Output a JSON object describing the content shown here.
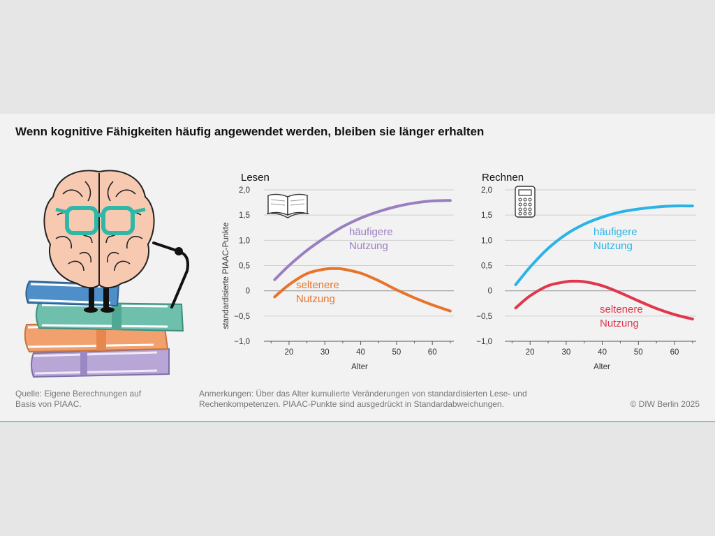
{
  "title": "Wenn kognitive Fähigkeiten häufig angewendet werden, bleiben sie länger erhalten",
  "illustration": {
    "name": "brain-with-glasses-on-books"
  },
  "colors": {
    "lesen_haeufig": "#9a7fc0",
    "lesen_selten": "#e8732a",
    "rechnen_haeufig": "#2ab3e6",
    "rechnen_selten": "#e0374b",
    "grid": "#cfcfcf",
    "zero_line": "#9a9a9a"
  },
  "chart_data": [
    {
      "type": "line",
      "title": "Lesen",
      "icon": "book-icon",
      "xlabel": "Alter",
      "ylabel": "standardisierte PIAAC-Punkte",
      "xlim": [
        13,
        66
      ],
      "ylim": [
        -1.0,
        2.0
      ],
      "xticks": [
        20,
        30,
        40,
        50,
        60
      ],
      "yticks": [
        2.0,
        1.5,
        1.0,
        0.5,
        0,
        -0.5,
        -1.0
      ],
      "ytick_labels": [
        "2,0",
        "1,5",
        "1,0",
        "0,5",
        "0",
        "−0,5",
        "−1,0"
      ],
      "grid": true,
      "series": [
        {
          "label": [
            "häufigere",
            "Nutzung"
          ],
          "color": "#9a7fc0",
          "x": [
            16,
            20,
            25,
            30,
            35,
            40,
            45,
            50,
            55,
            60,
            65
          ],
          "y": [
            0.22,
            0.5,
            0.8,
            1.05,
            1.27,
            1.44,
            1.57,
            1.67,
            1.74,
            1.78,
            1.79
          ]
        },
        {
          "label": [
            "seltenere",
            "Nutzung"
          ],
          "color": "#e8732a",
          "x": [
            16,
            20,
            25,
            30,
            33,
            35,
            40,
            45,
            50,
            55,
            60,
            65
          ],
          "y": [
            -0.12,
            0.12,
            0.34,
            0.43,
            0.44,
            0.43,
            0.35,
            0.2,
            0.02,
            -0.14,
            -0.28,
            -0.4
          ]
        }
      ]
    },
    {
      "type": "line",
      "title": "Rechnen",
      "icon": "calculator-icon",
      "xlabel": "Alter",
      "ylabel": "",
      "xlim": [
        13,
        66
      ],
      "ylim": [
        -1.0,
        2.0
      ],
      "xticks": [
        20,
        30,
        40,
        50,
        60
      ],
      "yticks": [
        2.0,
        1.5,
        1.0,
        0.5,
        0,
        -0.5,
        -1.0
      ],
      "ytick_labels": [
        "2,0",
        "1,5",
        "1,0",
        "0,5",
        "0",
        "−0,5",
        "−1,0"
      ],
      "grid": true,
      "series": [
        {
          "label": [
            "häufigere",
            "Nutzung"
          ],
          "color": "#2ab3e6",
          "x": [
            16,
            20,
            25,
            30,
            35,
            40,
            45,
            50,
            55,
            60,
            65
          ],
          "y": [
            0.12,
            0.47,
            0.84,
            1.12,
            1.32,
            1.46,
            1.56,
            1.62,
            1.66,
            1.68,
            1.68
          ]
        },
        {
          "label": [
            "seltenere",
            "Nutzung"
          ],
          "color": "#e0374b",
          "x": [
            16,
            20,
            25,
            30,
            32,
            35,
            40,
            45,
            50,
            55,
            60,
            65
          ],
          "y": [
            -0.34,
            -0.1,
            0.1,
            0.18,
            0.19,
            0.18,
            0.1,
            -0.04,
            -0.2,
            -0.35,
            -0.47,
            -0.56
          ]
        }
      ]
    }
  ],
  "footer": {
    "source": "Quelle: Eigene Berechnungen auf Basis von PIAAC.",
    "remarks": "Anmerkungen: Über das Alter kumulierte Veränderungen von standardisierten Lese- und Rechenkompetenzen. PIAAC-Punkte sind ausgedrückt in Standardabweichungen.",
    "copyright": "© DIW Berlin 2025"
  }
}
